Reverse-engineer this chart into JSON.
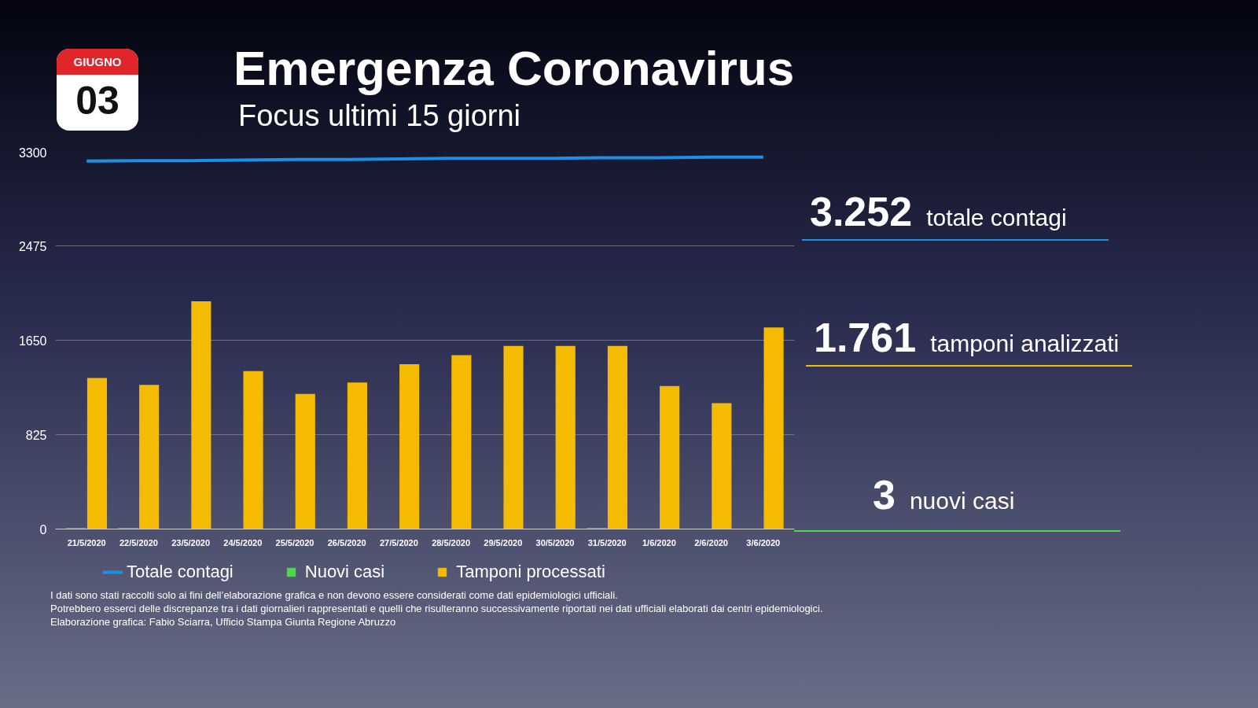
{
  "chart_data": {
    "type": "bar",
    "title": "Emergenza Coronavirus",
    "subtitle": "Focus ultimi 15 giorni",
    "categories": [
      "21/5/2020",
      "22/5/2020",
      "23/5/2020",
      "24/5/2020",
      "25/5/2020",
      "26/5/2020",
      "27/5/2020",
      "28/5/2020",
      "29/5/2020",
      "30/5/2020",
      "31/5/2020",
      "1/6/2020",
      "2/6/2020",
      "3/6/2020"
    ],
    "series": [
      {
        "name": "Totale contagi",
        "type": "line",
        "color": "#1e8fe6",
        "values": [
          3215,
          3220,
          3220,
          3225,
          3230,
          3230,
          3235,
          3240,
          3240,
          3240,
          3245,
          3245,
          3250,
          3250
        ]
      },
      {
        "name": "Nuovi casi",
        "color": "#4cd94c",
        "values": [
          8,
          8,
          1,
          2,
          1,
          2,
          2,
          2,
          2,
          1,
          8,
          1,
          1,
          3
        ]
      },
      {
        "name": "Tamponi processati",
        "color": "#f5bb00",
        "values": [
          1320,
          1260,
          1990,
          1380,
          1180,
          1280,
          1440,
          1520,
          1600,
          1600,
          1600,
          1250,
          1100,
          1761
        ]
      }
    ],
    "ylim": [
      0,
      3300
    ],
    "yticks": [
      0,
      825,
      1650,
      2475,
      3300
    ],
    "grid": "y",
    "legend": "bottom",
    "annotations": [
      "3.252",
      "totale contagi",
      "1.761",
      "tamponi analizzati",
      "3",
      "nuovi casi",
      "GIUGNO",
      "03",
      "I dati sono stati raccolti solo ai fini dell’elaborazione grafica e non devono essere considerati come dati epidemiologici ufficiali.",
      "Potrebbero esserci delle discrepanze tra i dati giornalieri rappresentati e quelli che risulteranno successivamente riportati nei dati ufficiali elaborati dai centri epidemiologici.",
      "Elaborazione grafica: Fabio Sciarra, Ufficio Stampa Giunta Regione Abruzzo"
    ]
  }
}
